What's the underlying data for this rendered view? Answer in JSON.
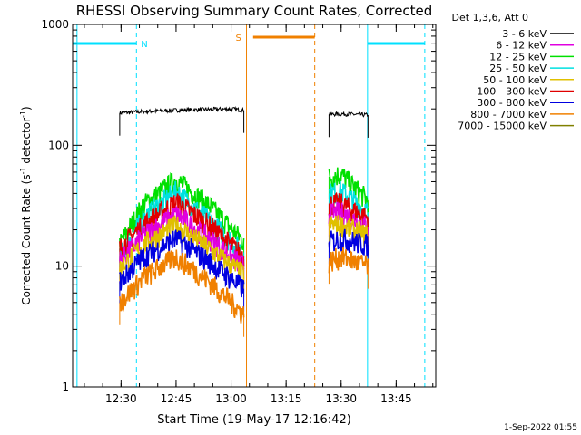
{
  "chart_data": {
    "type": "line",
    "title": "RHESSI Observing Summary Count Rates, Corrected",
    "xlabel": "Start Time (19-May-17 12:16:42)",
    "ylabel": "Corrected Count Rate (s⁻¹ detector⁻¹)",
    "ylabel_main": "Corrected Count Rate (s",
    "ylabel_sup1": "-1",
    "ylabel_mid": " detector",
    "ylabel_sup2": "-1",
    "ylabel_end": ")",
    "yscale": "log",
    "ylim": [
      1,
      1000
    ],
    "xlim": [
      12.28,
      13.93
    ],
    "x_ticks": [
      {
        "t": 12.5,
        "label": "12:30"
      },
      {
        "t": 12.75,
        "label": "12:45"
      },
      {
        "t": 13.0,
        "label": "13:00"
      },
      {
        "t": 13.25,
        "label": "13:15"
      },
      {
        "t": 13.5,
        "label": "13:30"
      },
      {
        "t": 13.75,
        "label": "13:45"
      }
    ],
    "y_ticks": [
      {
        "v": 1,
        "label": "1"
      },
      {
        "v": 10,
        "label": "10"
      },
      {
        "v": 100,
        "label": "100"
      },
      {
        "v": 1000,
        "label": "1000"
      }
    ],
    "legend": {
      "position": "right",
      "header": "Det 1,3,6, Att 0",
      "items": [
        {
          "label": "3 - 6 keV",
          "color": "#000000"
        },
        {
          "label": "6 - 12 keV",
          "color": "#e000e0"
        },
        {
          "label": "12 - 25 keV",
          "color": "#00e000"
        },
        {
          "label": "25 - 50 keV",
          "color": "#00e0e0"
        },
        {
          "label": "50 - 100 keV",
          "color": "#e0c000"
        },
        {
          "label": "100 - 300 keV",
          "color": "#e00000"
        },
        {
          "label": "300 - 800 keV",
          "color": "#0000e0"
        },
        {
          "label": "800 - 7000 keV",
          "color": "#f08000"
        },
        {
          "label": "7000 - 15000 keV",
          "color": "#808000"
        }
      ]
    },
    "segments": [
      {
        "start": 12.494,
        "end": 13.058
      },
      {
        "start": 13.445,
        "end": 13.622
      }
    ],
    "series": [
      {
        "name": "3 - 6 keV",
        "color": "#000000",
        "shape": "flat",
        "points": [
          [
            12.494,
            185
          ],
          [
            12.6,
            190
          ],
          [
            12.75,
            195
          ],
          [
            12.9,
            198
          ],
          [
            13.0,
            200
          ],
          [
            13.058,
            195
          ],
          [
            13.445,
            180
          ],
          [
            13.5,
            182
          ],
          [
            13.622,
            178
          ]
        ]
      },
      {
        "name": "12 - 25 keV",
        "color": "#00e000",
        "shape": "hump",
        "points": [
          [
            12.494,
            15
          ],
          [
            12.6,
            32
          ],
          [
            12.75,
            52
          ],
          [
            12.9,
            32
          ],
          [
            13.058,
            16
          ],
          [
            13.445,
            55
          ],
          [
            13.5,
            58
          ],
          [
            13.622,
            35
          ]
        ]
      },
      {
        "name": "25 - 50 keV",
        "color": "#00e0e0",
        "shape": "hump",
        "points": [
          [
            12.494,
            12
          ],
          [
            12.6,
            25
          ],
          [
            12.75,
            42
          ],
          [
            12.9,
            24
          ],
          [
            13.058,
            13
          ],
          [
            13.445,
            40
          ],
          [
            13.5,
            42
          ],
          [
            13.622,
            28
          ]
        ]
      },
      {
        "name": "100 - 300 keV",
        "color": "#e00000",
        "shape": "hump",
        "points": [
          [
            12.494,
            14
          ],
          [
            12.6,
            22
          ],
          [
            12.75,
            34
          ],
          [
            12.9,
            22
          ],
          [
            13.058,
            12
          ],
          [
            13.445,
            33
          ],
          [
            13.5,
            33
          ],
          [
            13.622,
            25
          ]
        ]
      },
      {
        "name": "6 - 12 keV",
        "color": "#e000e0",
        "shape": "hump",
        "points": [
          [
            12.494,
            11
          ],
          [
            12.6,
            18
          ],
          [
            12.75,
            27
          ],
          [
            12.9,
            17
          ],
          [
            13.058,
            10
          ],
          [
            13.445,
            27
          ],
          [
            13.5,
            28
          ],
          [
            13.622,
            21
          ]
        ]
      },
      {
        "name": "50 - 100 keV",
        "color": "#e0c000",
        "shape": "hump",
        "points": [
          [
            12.494,
            9.5
          ],
          [
            12.6,
            15
          ],
          [
            12.75,
            22
          ],
          [
            12.9,
            14
          ],
          [
            13.058,
            8.5
          ],
          [
            13.445,
            22
          ],
          [
            13.5,
            22
          ],
          [
            13.622,
            18
          ]
        ]
      },
      {
        "name": "300 - 800 keV",
        "color": "#0000e0",
        "shape": "hump",
        "points": [
          [
            12.494,
            7.5
          ],
          [
            12.6,
            12
          ],
          [
            12.75,
            17
          ],
          [
            12.9,
            11
          ],
          [
            13.058,
            6.5
          ],
          [
            13.445,
            16
          ],
          [
            13.5,
            17
          ],
          [
            13.622,
            15
          ]
        ]
      },
      {
        "name": "800 - 7000 keV",
        "color": "#f08000",
        "shape": "hump",
        "points": [
          [
            12.494,
            5
          ],
          [
            12.6,
            8
          ],
          [
            12.75,
            12
          ],
          [
            12.9,
            7.5
          ],
          [
            13.058,
            4
          ],
          [
            13.445,
            11
          ],
          [
            13.5,
            12
          ],
          [
            13.622,
            10
          ]
        ]
      }
    ],
    "annotations": {
      "night_label": "N",
      "saa_label": "S",
      "night_color": "#00e0ff",
      "saa_color": "#f08000",
      "night_bars": [
        [
          12.28,
          12.57
        ],
        [
          13.62,
          13.88
        ]
      ],
      "saa_bars": [
        [
          13.1,
          13.38
        ]
      ],
      "night_lines": [
        12.3,
        12.57,
        13.62,
        13.88
      ],
      "saa_lines": [
        13.07,
        13.38
      ]
    },
    "footer_date": "1-Sep-2022 01:55"
  }
}
